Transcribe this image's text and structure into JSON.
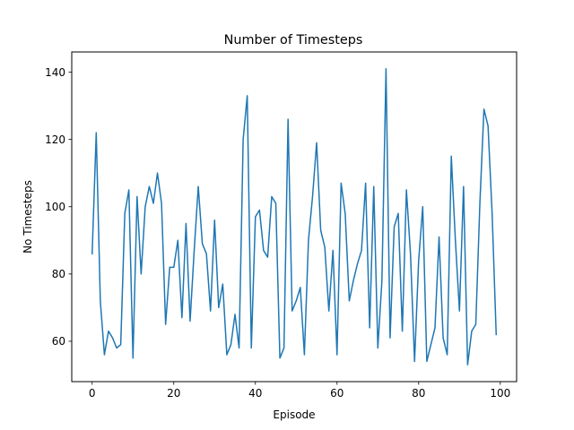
{
  "chart_data": {
    "type": "line",
    "title": "Number of Timesteps",
    "xlabel": "Episode",
    "ylabel": "No Timesteps",
    "xlim": [
      -5,
      104
    ],
    "ylim": [
      48,
      146
    ],
    "xticks": [
      0,
      20,
      40,
      60,
      80,
      100
    ],
    "yticks": [
      60,
      80,
      100,
      120,
      140
    ],
    "grid": false,
    "colors": {
      "line": "#1f77b4"
    },
    "series": [
      {
        "x": [
          0,
          1,
          2,
          3,
          4,
          5,
          6,
          7,
          8,
          9,
          10,
          11,
          12,
          13,
          14,
          15,
          16,
          17,
          18,
          19,
          20,
          21,
          22,
          23,
          24,
          25,
          26,
          27,
          28,
          29,
          30,
          31,
          32,
          33,
          34,
          35,
          36,
          37,
          38,
          39,
          40,
          41,
          42,
          43,
          44,
          45,
          46,
          47,
          48,
          49,
          50,
          51,
          52,
          53,
          54,
          55,
          56,
          57,
          58,
          59,
          60,
          61,
          62,
          63,
          64,
          65,
          66,
          67,
          68,
          69,
          70,
          71,
          72,
          73,
          74,
          75,
          76,
          77,
          78,
          79,
          80,
          81,
          82,
          83,
          84,
          85,
          86,
          87,
          88,
          89,
          90,
          91,
          92,
          93,
          94,
          95,
          96,
          97,
          98,
          99
        ],
        "values": [
          86,
          122,
          72,
          56,
          63,
          61,
          58,
          59,
          98,
          105,
          55,
          103,
          80,
          100,
          106,
          101,
          110,
          101,
          65,
          82,
          82,
          90,
          67,
          95,
          66,
          87,
          106,
          89,
          86,
          69,
          96,
          70,
          77,
          56,
          59,
          68,
          58,
          120,
          133,
          58,
          97,
          99,
          87,
          85,
          103,
          101,
          55,
          58,
          126,
          69,
          72,
          76,
          56,
          90,
          103,
          119,
          93,
          88,
          69,
          87,
          56,
          107,
          98,
          72,
          78,
          83,
          87,
          107,
          64,
          106,
          58,
          78,
          141,
          61,
          94,
          98,
          63,
          105,
          86,
          54,
          84,
          100,
          54,
          59,
          64,
          91,
          61,
          56,
          115,
          90,
          69,
          106,
          53,
          63,
          65,
          101,
          129,
          124,
          98,
          62
        ]
      }
    ]
  }
}
